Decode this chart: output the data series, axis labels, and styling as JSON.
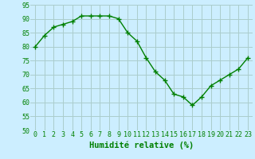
{
  "x": [
    0,
    1,
    2,
    3,
    4,
    5,
    6,
    7,
    8,
    9,
    10,
    11,
    12,
    13,
    14,
    15,
    16,
    17,
    18,
    19,
    20,
    21,
    22,
    23
  ],
  "y": [
    80,
    84,
    87,
    88,
    89,
    91,
    91,
    91,
    91,
    90,
    85,
    82,
    76,
    71,
    68,
    63,
    62,
    59,
    62,
    66,
    68,
    70,
    72,
    76
  ],
  "line_color": "#008000",
  "marker": "+",
  "marker_size": 4,
  "marker_linewidth": 1.0,
  "bg_color": "#cceeff",
  "grid_color": "#aacccc",
  "text_color": "#008000",
  "xlabel": "Humidité relative (%)",
  "ylim": [
    50,
    95
  ],
  "xlim": [
    -0.5,
    23.5
  ],
  "yticks": [
    50,
    55,
    60,
    65,
    70,
    75,
    80,
    85,
    90,
    95
  ],
  "xticks": [
    0,
    1,
    2,
    3,
    4,
    5,
    6,
    7,
    8,
    9,
    10,
    11,
    12,
    13,
    14,
    15,
    16,
    17,
    18,
    19,
    20,
    21,
    22,
    23
  ],
  "tick_label_fontsize": 6,
  "xlabel_fontsize": 7.5,
  "linewidth": 1.0
}
